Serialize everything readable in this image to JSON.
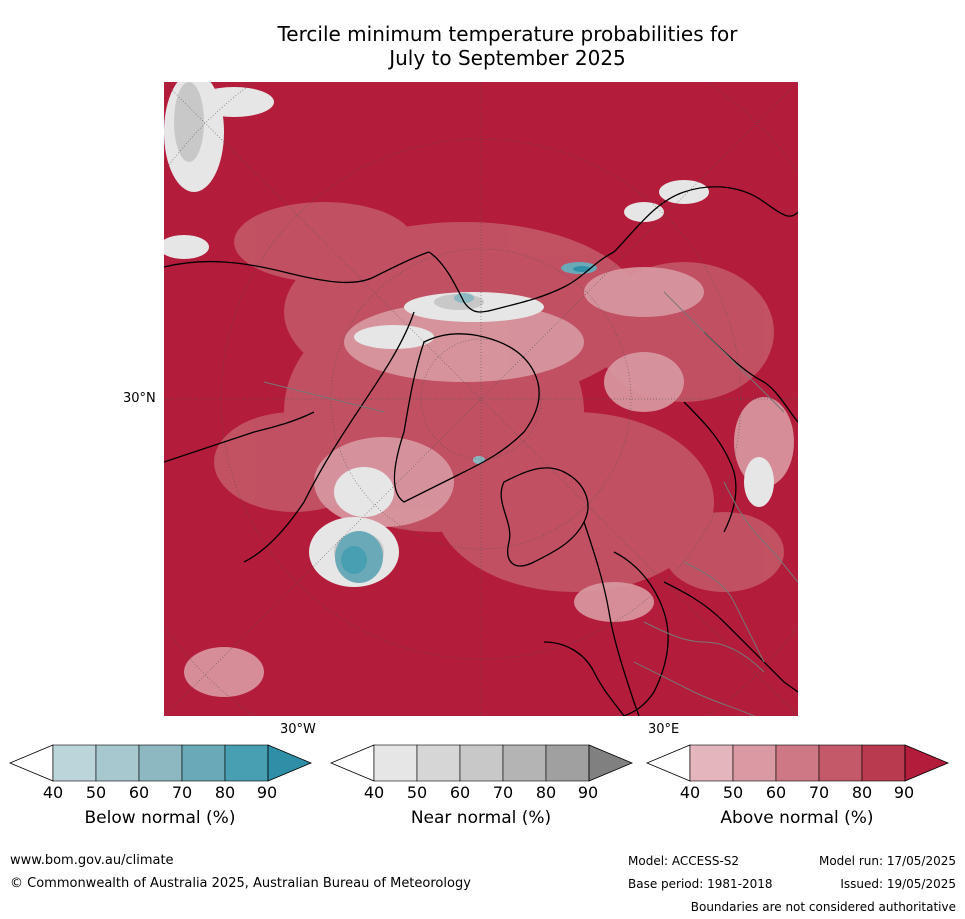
{
  "title": {
    "line1": "Tercile minimum temperature probabilities for",
    "line2": "July to September 2025"
  },
  "map_labels": {
    "lat_label": "30°N",
    "lon_west": "30°W",
    "lon_east": "30°E"
  },
  "colorbars": [
    {
      "title": "Below normal (%)",
      "ticks": [
        "40",
        "50",
        "60",
        "70",
        "80",
        "90"
      ],
      "colors": [
        "#ffffff",
        "#bcd5db",
        "#a7c8cf",
        "#8db8c1",
        "#6aa9b7",
        "#489fb1",
        "#2e8fa6"
      ]
    },
    {
      "title": "Near normal (%)",
      "ticks": [
        "40",
        "50",
        "60",
        "70",
        "80",
        "90"
      ],
      "colors": [
        "#ffffff",
        "#e6e6e6",
        "#d6d6d6",
        "#c8c8c8",
        "#b4b4b4",
        "#a0a0a0",
        "#808080"
      ]
    },
    {
      "title": "Above normal (%)",
      "ticks": [
        "40",
        "50",
        "60",
        "70",
        "80",
        "90"
      ],
      "colors": [
        "#ffffff",
        "#e4b5bc",
        "#d99aa3",
        "#cd7884",
        "#c45a69",
        "#b93a4e",
        "#b31c3a"
      ]
    }
  ],
  "footer": {
    "url": "www.bom.gov.au/climate",
    "copyright": "© Commonwealth of Australia 2025, Australian Bureau of Meteorology",
    "model": "Model: ACCESS-S2",
    "base_period": "Base period: 1981-2018",
    "model_run": "Model run: 17/05/2025",
    "issued": "Issued: 19/05/2025",
    "disclaimer": "Boundaries are not considered authoritative"
  },
  "colors": {
    "above_dominant": "#b31c3a",
    "above_medium": "#c45a69",
    "above_light": "#d99aa3",
    "near_light": "#e6e6e6",
    "near_medium": "#c8c8c8",
    "below_medium": "#6aa9b7",
    "below_dark": "#2e8fa6"
  }
}
